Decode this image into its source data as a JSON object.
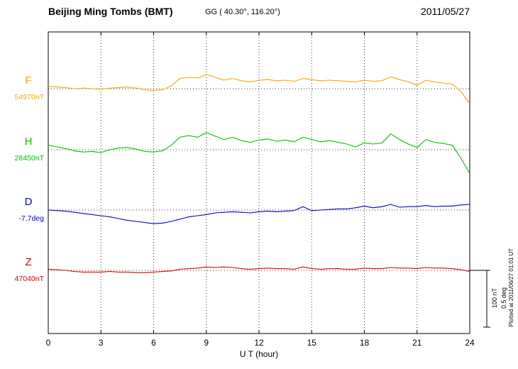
{
  "header": {
    "station": "Beijing Ming Tombs (BMT)",
    "coords": "GG ( 40.30°, 116.20°)",
    "date": "2011/05/27"
  },
  "scale_bar": {
    "line1": "100 nT",
    "line2": "0.5 deg"
  },
  "footer_note": "Plotted at 2011/06/27 01:01 UT",
  "chart_data": {
    "type": "line",
    "title": "Beijing Ming Tombs (BMT)",
    "xlabel": "U T (hour)",
    "x_start": 0,
    "x_step_hours": 0.5,
    "x_end": 24,
    "x_ticks": [
      0,
      3,
      6,
      9,
      12,
      15,
      18,
      21,
      24
    ],
    "grid": "dotted vertical every 3 hours, dotted horizontal baseline per component",
    "scale": {
      "bar_nT": 100,
      "bar_deg": 0.5
    },
    "series": [
      {
        "name": "F",
        "unit": "nT",
        "baseline": 54970,
        "baseline_label": "54970nT",
        "color": "#FFA500",
        "offsets": [
          4,
          3,
          2,
          0,
          1,
          0,
          -1,
          1,
          2,
          3,
          1,
          -2,
          -3,
          -2,
          5,
          18,
          20,
          19,
          25,
          20,
          15,
          18,
          14,
          12,
          15,
          16,
          14,
          15,
          13,
          18,
          16,
          14,
          15,
          14,
          13,
          12,
          15,
          13,
          14,
          21,
          16,
          12,
          6,
          15,
          12,
          10,
          8,
          -5,
          -27
        ]
      },
      {
        "name": "H",
        "unit": "nT",
        "baseline": 28450,
        "baseline_label": "28450nT",
        "color": "#00C000",
        "offsets": [
          8,
          5,
          2,
          -2,
          -4,
          -3,
          -5,
          0,
          3,
          4,
          1,
          -3,
          -4,
          -2,
          8,
          22,
          25,
          22,
          30,
          24,
          18,
          22,
          16,
          13,
          17,
          19,
          15,
          17,
          14,
          22,
          18,
          14,
          16,
          13,
          10,
          5,
          12,
          10,
          12,
          28,
          18,
          10,
          4,
          18,
          13,
          11,
          8,
          -15,
          -42
        ]
      },
      {
        "name": "D",
        "unit": "deg",
        "baseline": -7.7,
        "baseline_label": "-7.7deg",
        "color": "#0000CD",
        "offsets": [
          0,
          -0.005,
          -0.01,
          -0.02,
          -0.03,
          -0.04,
          -0.05,
          -0.06,
          -0.075,
          -0.09,
          -0.1,
          -0.11,
          -0.12,
          -0.115,
          -0.1,
          -0.08,
          -0.06,
          -0.05,
          -0.04,
          -0.025,
          -0.02,
          -0.015,
          -0.02,
          -0.025,
          -0.015,
          -0.01,
          -0.015,
          -0.01,
          -0.005,
          0.03,
          -0.005,
          0,
          0.005,
          0.01,
          0.01,
          0.02,
          0.035,
          0.02,
          0.03,
          0.05,
          0.025,
          0.03,
          0.03,
          0.04,
          0.03,
          0.035,
          0.035,
          0.045,
          0.05
        ]
      },
      {
        "name": "Z",
        "unit": "nT",
        "baseline": 47040,
        "baseline_label": "47040nT",
        "color": "#DD0000",
        "offsets": [
          2,
          1,
          0,
          -2,
          -3,
          -3,
          -3,
          -2,
          -3,
          -3,
          -4,
          -4,
          -3,
          -2,
          -1,
          2,
          3,
          4,
          6,
          5,
          6,
          5,
          3,
          2,
          3,
          4,
          3,
          3,
          2,
          6,
          3,
          2,
          3,
          3,
          2,
          2,
          4,
          3,
          3,
          5,
          4,
          4,
          3,
          5,
          4,
          4,
          3,
          1,
          -2
        ]
      }
    ]
  }
}
